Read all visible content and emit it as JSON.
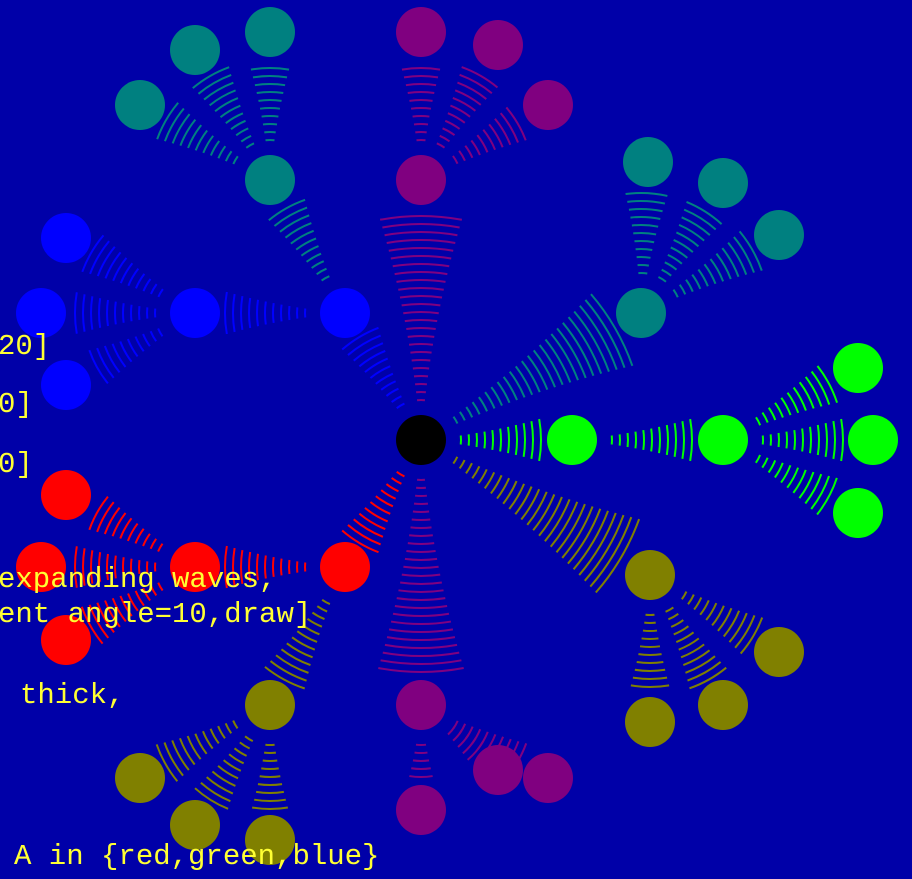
{
  "code_lines": [
    "20]",
    "0]",
    "0]",
    "expanding waves,",
    "ent angle=10,draw]",
    "thick,",
    "A in {red,green,blue}"
  ]
}
